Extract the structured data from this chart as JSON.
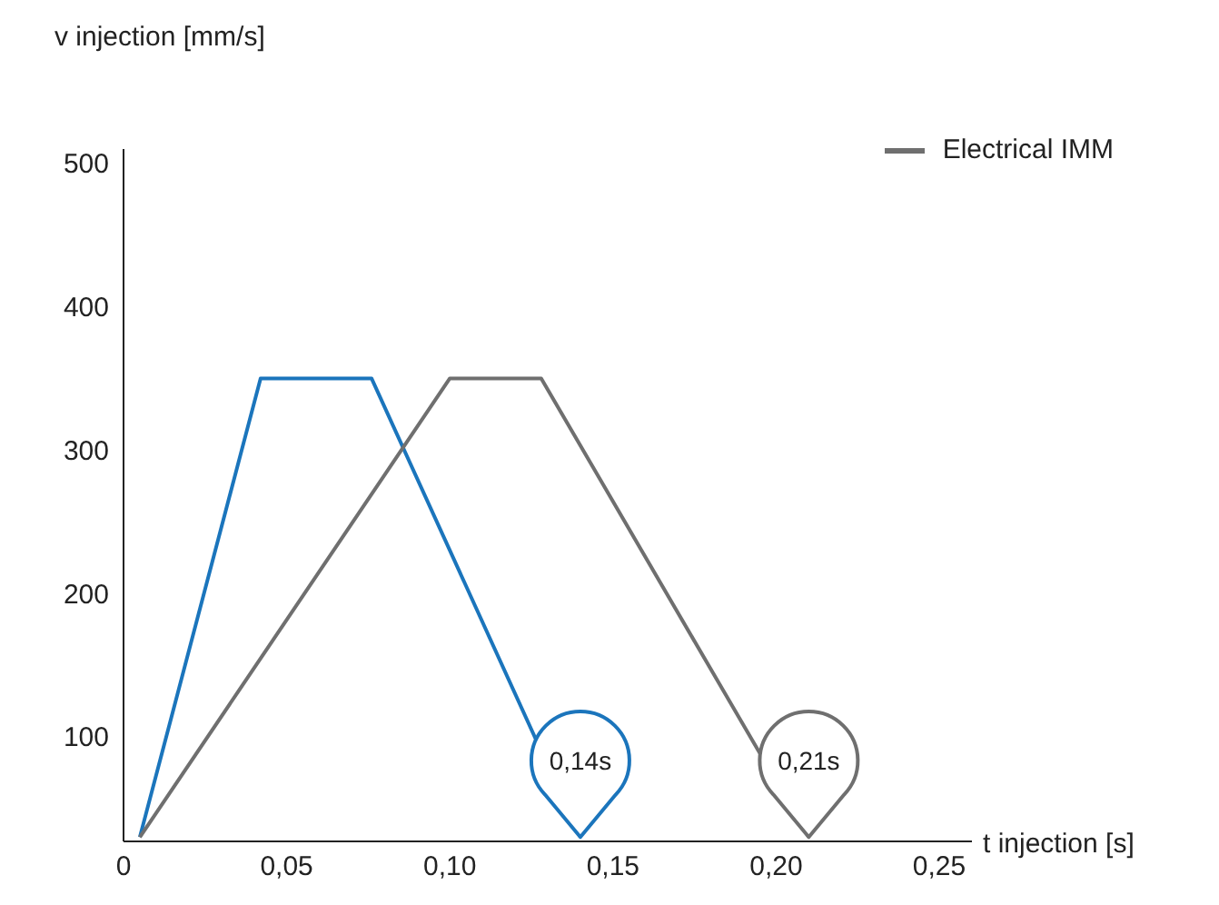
{
  "chart_data": {
    "type": "line",
    "xlabel": "t injection [s]",
    "ylabel": "v injection [mm/s]",
    "xlim": [
      0,
      0.26
    ],
    "ylim": [
      27,
      510
    ],
    "xticks": [
      {
        "value": 0,
        "label": "0"
      },
      {
        "value": 0.05,
        "label": "0,05"
      },
      {
        "value": 0.1,
        "label": "0,10"
      },
      {
        "value": 0.15,
        "label": "0,15"
      },
      {
        "value": 0.2,
        "label": "0,20"
      },
      {
        "value": 0.25,
        "label": "0,25"
      }
    ],
    "yticks": [
      100,
      200,
      300,
      400,
      500
    ],
    "series": [
      {
        "color": "#1b75bc",
        "x": [
          0.005,
          0.042,
          0.076,
          0.14
        ],
        "values": [
          30,
          350,
          350,
          30
        ]
      },
      {
        "name": "Electrical IMM",
        "color": "#6f6f6f",
        "x": [
          0.005,
          0.1,
          0.128,
          0.21
        ],
        "values": [
          30,
          350,
          350,
          30
        ]
      }
    ],
    "annotations": [
      {
        "text": "0,14s",
        "x": 0.14,
        "y": 30
      },
      {
        "text": "0,21s",
        "x": 0.21,
        "y": 30
      }
    ],
    "legend": "top right",
    "grid": false,
    "marker": "none",
    "line_style": "solid"
  }
}
